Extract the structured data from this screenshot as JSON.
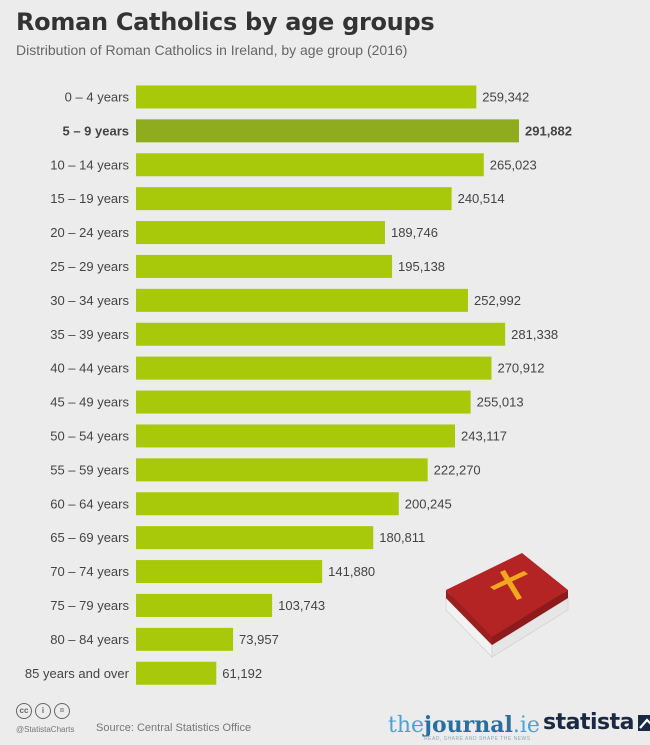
{
  "header": {
    "title": "Roman Catholics by age groups",
    "subtitle": "Distribution of Roman Catholics in Ireland, by age group (2016)"
  },
  "chart_data": {
    "type": "bar",
    "orientation": "horizontal",
    "title": "Roman Catholics by age groups",
    "subtitle": "Distribution of Roman Catholics in Ireland, by age group (2016)",
    "categories": [
      "0 – 4 years",
      "5 – 9 years",
      "10 – 14 years",
      "15 – 19 years",
      "20 – 24 years",
      "25 – 29 years",
      "30 – 34 years",
      "35 – 39 years",
      "40 – 44 years",
      "45 – 49 years",
      "50 – 54 years",
      "55 – 59 years",
      "60 – 64 years",
      "65 – 69 years",
      "70 – 74 years",
      "75 – 79 years",
      "80 – 84 years",
      "85 years and over"
    ],
    "values": [
      259342,
      291882,
      265023,
      240514,
      189746,
      195138,
      252992,
      281338,
      270912,
      255013,
      243117,
      222270,
      200245,
      180811,
      141880,
      103743,
      73957,
      61192
    ],
    "value_labels": [
      "259,342",
      "291,882",
      "265,023",
      "240,514",
      "189,746",
      "195,138",
      "252,992",
      "281,338",
      "270,912",
      "255,013",
      "243,117",
      "222,270",
      "200,245",
      "180,811",
      "141,880",
      "103,743",
      "73,957",
      "61,192"
    ],
    "highlight_index": 1,
    "colors": {
      "bar": "#a8c80a",
      "highlight": "#8fab1e"
    },
    "xlim": [
      0,
      330000
    ],
    "grid": false,
    "legend": "none"
  },
  "footer": {
    "handle": "@StatistaCharts",
    "source": "Source: Central Statistics Office",
    "journal_light": "the",
    "journal_bold": "journal",
    "journal_suffix": ".ie",
    "journal_tag": "READ, SHARE AND SHAPE THE NEWS",
    "statista": "statista"
  },
  "icons": [
    "creative-commons-icon",
    "attribution-icon",
    "no-derivatives-icon",
    "bible-icon",
    "statista-logo-icon"
  ]
}
